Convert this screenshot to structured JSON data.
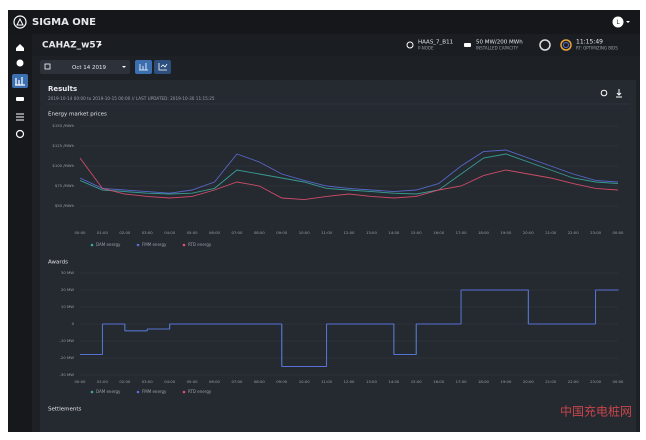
{
  "header": {
    "brand": "SIGMA ONE",
    "avatar": "L"
  },
  "subheader": {
    "project": "CAHAZ_w57",
    "node": {
      "value": "HAAS_7_B11",
      "label": "P-NODE"
    },
    "capacity": {
      "value": "50 MW/200 MWh",
      "label": "INSTALLED CAPACITY"
    },
    "status": {
      "value": "11:15:49",
      "label": "RT: OPTIMIZING BIDS"
    }
  },
  "toolbar": {
    "date": "Oct 14 2019"
  },
  "results": {
    "title": "Results",
    "subtitle": "2019-10-14 00:00 to 2019-10-15 00:00 // LAST UPDATED: 2019-10-30 11:15:25",
    "settlements_title": "Settlements"
  },
  "watermark": "中国充电桩网",
  "chart_data": [
    {
      "type": "line",
      "title": "Energy market prices",
      "categories": [
        "00:00",
        "01:00",
        "02:00",
        "03:00",
        "04:00",
        "05:00",
        "06:00",
        "07:00",
        "08:00",
        "09:00",
        "10:00",
        "11:00",
        "12:00",
        "13:00",
        "14:00",
        "15:00",
        "16:00",
        "17:00",
        "18:00",
        "19:00",
        "20:00",
        "21:00",
        "22:00",
        "23:00",
        "00:00"
      ],
      "series": [
        {
          "name": "DAM energy",
          "color": "#3aa89e",
          "values": [
            82,
            70,
            68,
            66,
            65,
            66,
            72,
            95,
            90,
            85,
            80,
            72,
            70,
            68,
            66,
            65,
            70,
            90,
            110,
            115,
            105,
            95,
            85,
            80,
            78
          ]
        },
        {
          "name": "FMM energy",
          "color": "#5b6fd8",
          "values": [
            85,
            72,
            70,
            68,
            66,
            70,
            80,
            115,
            105,
            90,
            82,
            75,
            72,
            70,
            68,
            70,
            78,
            100,
            118,
            120,
            110,
            100,
            90,
            82,
            80
          ]
        },
        {
          "name": "RTD energy",
          "color": "#e0506e",
          "values": [
            110,
            72,
            65,
            62,
            60,
            62,
            70,
            80,
            75,
            60,
            58,
            62,
            65,
            62,
            60,
            62,
            70,
            75,
            88,
            95,
            90,
            85,
            78,
            72,
            70
          ]
        }
      ],
      "ylim": [
        25,
        150
      ],
      "yticks": [
        {
          "value": 150,
          "label": "$150 /MWh"
        },
        {
          "value": 125,
          "label": "$125 /MWh"
        },
        {
          "value": 100,
          "label": "$100 /MWh"
        },
        {
          "value": 75,
          "label": "$75 /MWh"
        },
        {
          "value": 50,
          "label": "$50 /MWh"
        }
      ],
      "grid": true,
      "legend": "bottom"
    },
    {
      "type": "step",
      "title": "Awards",
      "categories": [
        "00:00",
        "01:00",
        "02:00",
        "03:00",
        "04:00",
        "05:00",
        "06:00",
        "07:00",
        "08:00",
        "09:00",
        "10:00",
        "11:00",
        "12:00",
        "13:00",
        "14:00",
        "15:00",
        "16:00",
        "17:00",
        "18:00",
        "19:00",
        "20:00",
        "21:00",
        "22:00",
        "23:00",
        "00:00"
      ],
      "series": [
        {
          "name": "DAM energy",
          "color": "#3aa89e",
          "values": [
            -18,
            0,
            -4,
            -3,
            0,
            0,
            0,
            0,
            0,
            -25,
            -25,
            0,
            0,
            0,
            -18,
            0,
            0,
            20,
            20,
            20,
            0,
            0,
            0,
            20,
            20
          ]
        },
        {
          "name": "FMM energy",
          "color": "#5b6fd8",
          "values": [
            -18,
            0,
            -4,
            -3,
            0,
            0,
            0,
            0,
            0,
            -25,
            -25,
            0,
            0,
            0,
            -18,
            0,
            0,
            20,
            20,
            20,
            0,
            0,
            0,
            20,
            20
          ]
        },
        {
          "name": "RTD energy",
          "color": "#e0506e",
          "values": [
            null,
            null,
            null,
            null,
            null,
            null,
            null,
            null,
            null,
            null,
            null,
            null,
            null,
            null,
            null,
            null,
            null,
            null,
            null,
            null,
            null,
            null,
            null,
            null,
            null
          ]
        }
      ],
      "ylim": [
        -30,
        30
      ],
      "yticks": [
        {
          "value": 30,
          "label": "30 MW"
        },
        {
          "value": 20,
          "label": "20 MW"
        },
        {
          "value": 10,
          "label": "10 MW"
        },
        0,
        {
          "value": -10,
          "label": "-10 MW"
        },
        {
          "value": -20,
          "label": "-20 MW"
        },
        {
          "value": -30,
          "label": "-30 MW"
        }
      ],
      "grid": true,
      "legend": "bottom"
    }
  ]
}
